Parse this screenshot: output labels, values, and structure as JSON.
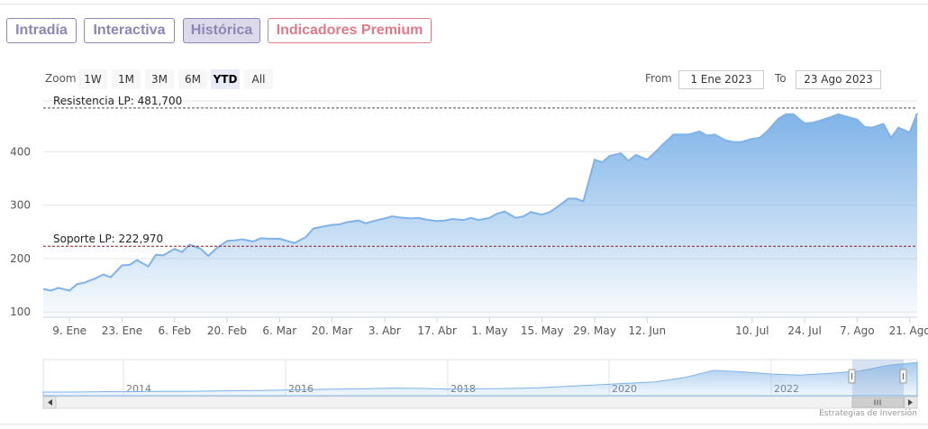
{
  "tabs": [
    {
      "label": "Intradía"
    },
    {
      "label": "Interactiva"
    },
    {
      "label": "Histórica"
    },
    {
      "label": "Indicadores Premium"
    }
  ],
  "zoom": {
    "label": "Zoom",
    "buttons": [
      "1W",
      "1M",
      "3M",
      "6M",
      "YTD",
      "All"
    ],
    "selected": "YTD"
  },
  "range": {
    "from_label": "From",
    "from_value": "1 Ene 2023",
    "to_label": "To",
    "to_value": "23 Ago 2023"
  },
  "chart_data": {
    "type": "area",
    "title": "",
    "xlabel": "",
    "ylabel": "",
    "ylim": [
      90,
      495
    ],
    "y_ticks": [
      100,
      200,
      300,
      400
    ],
    "x_tick_labels": [
      "9. Ene",
      "23. Ene",
      "6. Feb",
      "20. Feb",
      "6. Mar",
      "20. Mar",
      "3. Abr",
      "17. Abr",
      "1. May",
      "15. May",
      "29. May",
      "12. Jun",
      "10. Jul",
      "24. Jul",
      "7. Ago",
      "21. Ago"
    ],
    "x_tick_dates": [
      "2023-01-09",
      "2023-01-23",
      "2023-02-06",
      "2023-02-20",
      "2023-03-06",
      "2023-03-20",
      "2023-04-03",
      "2023-04-17",
      "2023-05-01",
      "2023-05-15",
      "2023-05-29",
      "2023-06-12",
      "2023-07-10",
      "2023-07-24",
      "2023-08-07",
      "2023-08-21"
    ],
    "x": [
      "2023-01-02",
      "2023-01-04",
      "2023-01-06",
      "2023-01-09",
      "2023-01-11",
      "2023-01-13",
      "2023-01-16",
      "2023-01-18",
      "2023-01-20",
      "2023-01-23",
      "2023-01-25",
      "2023-01-27",
      "2023-01-30",
      "2023-02-01",
      "2023-02-03",
      "2023-02-06",
      "2023-02-08",
      "2023-02-10",
      "2023-02-13",
      "2023-02-15",
      "2023-02-17",
      "2023-02-20",
      "2023-02-22",
      "2023-02-24",
      "2023-02-27",
      "2023-03-01",
      "2023-03-03",
      "2023-03-06",
      "2023-03-08",
      "2023-03-10",
      "2023-03-13",
      "2023-03-15",
      "2023-03-17",
      "2023-03-20",
      "2023-03-22",
      "2023-03-24",
      "2023-03-27",
      "2023-03-29",
      "2023-03-31",
      "2023-04-03",
      "2023-04-05",
      "2023-04-07",
      "2023-04-10",
      "2023-04-12",
      "2023-04-14",
      "2023-04-17",
      "2023-04-19",
      "2023-04-21",
      "2023-04-24",
      "2023-04-26",
      "2023-04-28",
      "2023-05-01",
      "2023-05-03",
      "2023-05-05",
      "2023-05-08",
      "2023-05-10",
      "2023-05-12",
      "2023-05-15",
      "2023-05-17",
      "2023-05-19",
      "2023-05-22",
      "2023-05-24",
      "2023-05-26",
      "2023-05-29",
      "2023-05-31",
      "2023-06-02",
      "2023-06-05",
      "2023-06-07",
      "2023-06-09",
      "2023-06-12",
      "2023-06-14",
      "2023-06-16",
      "2023-06-19",
      "2023-06-21",
      "2023-06-23",
      "2023-06-26",
      "2023-06-28",
      "2023-06-30",
      "2023-07-03",
      "2023-07-05",
      "2023-07-07",
      "2023-07-10",
      "2023-07-12",
      "2023-07-14",
      "2023-07-17",
      "2023-07-19",
      "2023-07-21",
      "2023-07-24",
      "2023-07-26",
      "2023-07-28",
      "2023-07-31",
      "2023-08-02",
      "2023-08-04",
      "2023-08-07",
      "2023-08-09",
      "2023-08-11",
      "2023-08-14",
      "2023-08-16",
      "2023-08-18",
      "2023-08-21",
      "2023-08-23"
    ],
    "series": [
      {
        "values": [
          143,
          140,
          145,
          140,
          152,
          155,
          163,
          170,
          165,
          187,
          188,
          197,
          185,
          207,
          206,
          218,
          212,
          226,
          218,
          205,
          218,
          233,
          234,
          236,
          232,
          238,
          237,
          237,
          233,
          229,
          240,
          256,
          259,
          263,
          264,
          268,
          271,
          266,
          270,
          275,
          279,
          277,
          275,
          276,
          273,
          270,
          271,
          274,
          272,
          276,
          272,
          276,
          284,
          288,
          276,
          279,
          287,
          282,
          287,
          296,
          312,
          312,
          307,
          385,
          380,
          392,
          397,
          383,
          394,
          385,
          398,
          412,
          432,
          432,
          432,
          438,
          430,
          432,
          421,
          418,
          418,
          424,
          426,
          438,
          462,
          470,
          470,
          453,
          454,
          458,
          465,
          470,
          466,
          460,
          446,
          445,
          452,
          426,
          445,
          436,
          472
        ]
      }
    ],
    "reference_lines": [
      {
        "label": "Resistencia LP: 481,700",
        "value": 481.7,
        "color": "#4a4a4a"
      },
      {
        "label": "Soporte LP: 222,970",
        "value": 222.97,
        "color": "#8b1a1a"
      }
    ],
    "navigator": {
      "year_labels": [
        "2014",
        "2016",
        "2018",
        "2020",
        "2022"
      ],
      "values": [
        10,
        10,
        11,
        11,
        12,
        12,
        13,
        14,
        15,
        17,
        18,
        19,
        21,
        20,
        18,
        19,
        20,
        22,
        26,
        30,
        34,
        38,
        50,
        70,
        66,
        60,
        57,
        62,
        68,
        84,
        92
      ]
    },
    "credit": "Estrategias de Inversión",
    "grid": true
  }
}
